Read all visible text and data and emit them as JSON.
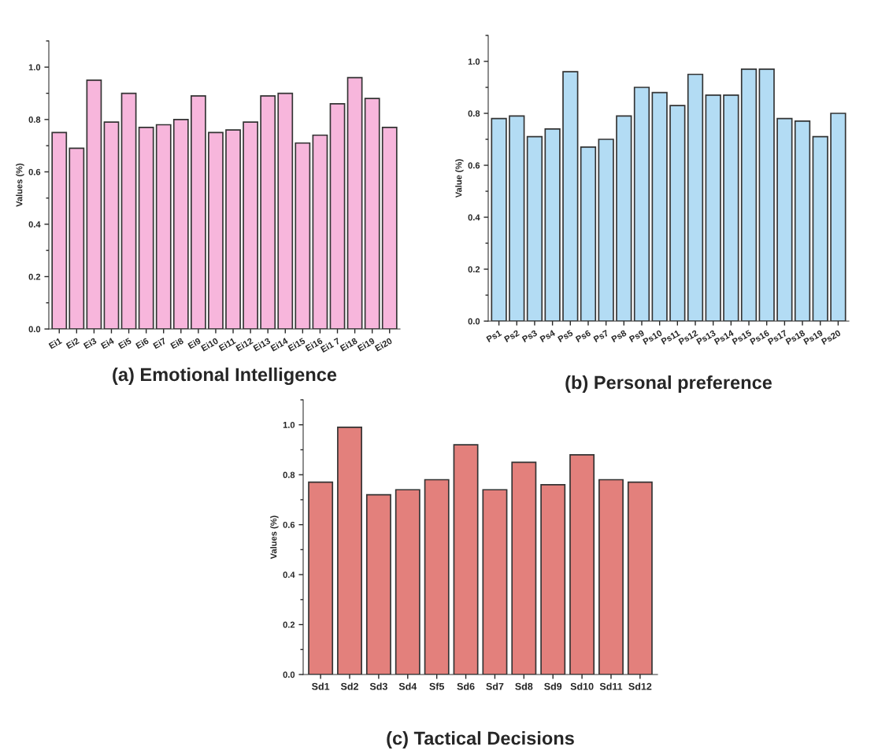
{
  "chart_data": [
    {
      "type": "bar",
      "title": "(a) Emotional Intelligence",
      "ylabel": "Values (%)",
      "categories": [
        "Ei1",
        "Ei2",
        "Ei3",
        "Ei4",
        "Ei5",
        "Ei6",
        "Ei7",
        "Ei8",
        "Ei9",
        "Ei10",
        "Ei11",
        "Ei12",
        "Ei13",
        "Ei14",
        "Ei15",
        "Ei16",
        "Ei1 7",
        "Ei18",
        "Ei19",
        "Ei20"
      ],
      "values": [
        0.75,
        0.69,
        0.95,
        0.79,
        0.9,
        0.77,
        0.78,
        0.8,
        0.89,
        0.75,
        0.76,
        0.79,
        0.89,
        0.9,
        0.71,
        0.74,
        0.86,
        0.96,
        0.88,
        0.77
      ],
      "color": "#f7b6dc",
      "ylim": [
        0,
        1.1
      ],
      "yticks": [
        {
          "value": 0,
          "label": "0.0"
        },
        {
          "value": 0.2,
          "label": "0.2"
        },
        {
          "value": 0.4,
          "label": "0.4"
        },
        {
          "value": 0.6,
          "label": "0.6"
        },
        {
          "value": 0.8,
          "label": "0.8"
        },
        {
          "value": 1,
          "label": "1.0"
        }
      ],
      "grid": false,
      "legend": false
    },
    {
      "type": "bar",
      "title": "(b) Personal preference",
      "ylabel": "Value (%)",
      "categories": [
        "Ps1",
        "Ps2",
        "Ps3",
        "Ps4",
        "Ps5",
        "Ps6",
        "Ps7",
        "Ps8",
        "Ps9",
        "Ps10",
        "Ps11",
        "Ps12",
        "Ps13",
        "Ps14",
        "Ps15",
        "Ps16",
        "Ps17",
        "Ps18",
        "Ps19",
        "Ps20"
      ],
      "values": [
        0.78,
        0.79,
        0.71,
        0.74,
        0.96,
        0.67,
        0.7,
        0.79,
        0.9,
        0.88,
        0.83,
        0.95,
        0.87,
        0.87,
        0.97,
        0.97,
        0.78,
        0.77,
        0.71,
        0.8
      ],
      "color": "#b3dcf4",
      "ylim": [
        0,
        1.1
      ],
      "yticks": [
        {
          "value": 0,
          "label": "0.0"
        },
        {
          "value": 0.2,
          "label": "0.2"
        },
        {
          "value": 0.4,
          "label": "0.4"
        },
        {
          "value": 0.6,
          "label": "0.6"
        },
        {
          "value": 0.8,
          "label": "0.8"
        },
        {
          "value": 1,
          "label": "1.0"
        }
      ],
      "grid": false,
      "legend": false
    },
    {
      "type": "bar",
      "title": "(c) Tactical Decisions",
      "ylabel": "Values (%)",
      "categories": [
        "Sd1",
        "Sd2",
        "Sd3",
        "Sd4",
        "Sf5",
        "Sd6",
        "Sd7",
        "Sd8",
        "Sd9",
        "Sd10",
        "Sd11",
        "Sd12"
      ],
      "values": [
        0.77,
        0.99,
        0.72,
        0.74,
        0.78,
        0.92,
        0.74,
        0.85,
        0.76,
        0.88,
        0.78,
        0.77
      ],
      "color": "#e3807c",
      "ylim": [
        0,
        1.1
      ],
      "yticks": [
        {
          "value": 0,
          "label": "0.0"
        },
        {
          "value": 0.2,
          "label": "0.2"
        },
        {
          "value": 0.4,
          "label": "0.4"
        },
        {
          "value": 0.6,
          "label": "0.6"
        },
        {
          "value": 0.8,
          "label": "0.8"
        },
        {
          "value": 1,
          "label": "1.0"
        }
      ],
      "grid": false,
      "legend": false
    }
  ]
}
